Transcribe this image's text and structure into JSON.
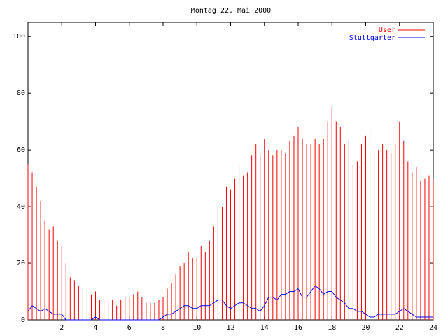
{
  "chart_data": {
    "type": "impulses-line",
    "title": "Montag 22. Mai 2000",
    "x": [
      0,
      0.25,
      0.5,
      0.75,
      1,
      1.25,
      1.5,
      1.75,
      2,
      2.25,
      2.5,
      2.75,
      3,
      3.25,
      3.5,
      3.75,
      4,
      4.25,
      4.5,
      4.75,
      5,
      5.25,
      5.5,
      5.75,
      6,
      6.25,
      6.5,
      6.75,
      7,
      7.25,
      7.5,
      7.75,
      8,
      8.25,
      8.5,
      8.75,
      9,
      9.25,
      9.5,
      9.75,
      10,
      10.25,
      10.5,
      10.75,
      11,
      11.25,
      11.5,
      11.75,
      12,
      12.25,
      12.5,
      12.75,
      13,
      13.25,
      13.5,
      13.75,
      14,
      14.25,
      14.5,
      14.75,
      15,
      15.25,
      15.5,
      15.75,
      16,
      16.25,
      16.5,
      16.75,
      17,
      17.25,
      17.5,
      17.75,
      18,
      18.25,
      18.5,
      18.75,
      19,
      19.25,
      19.5,
      19.75,
      20,
      20.25,
      20.5,
      20.75,
      21,
      21.25,
      21.5,
      21.75,
      22,
      22.25,
      22.5,
      22.75,
      23,
      23.25,
      23.5,
      23.75,
      24
    ],
    "series": [
      {
        "name": "User",
        "color": "#ff0000",
        "style": "impulses",
        "values": [
          55,
          52,
          47,
          42,
          35,
          32,
          33,
          28,
          26,
          20,
          15,
          14,
          12,
          11,
          11,
          9,
          10,
          7,
          7,
          7,
          7,
          5,
          7,
          8,
          8,
          9,
          10,
          8,
          6,
          6,
          6,
          7,
          8,
          11,
          13,
          16,
          19,
          20,
          24,
          22,
          22,
          26,
          24,
          28,
          33,
          40,
          40,
          47,
          46,
          50,
          55,
          51,
          52,
          58,
          62,
          58,
          64,
          60,
          58,
          60,
          60,
          59,
          63,
          65,
          68,
          64,
          62,
          62,
          64,
          62,
          64,
          70,
          75,
          70,
          68,
          62,
          64,
          55,
          56,
          62,
          65,
          67,
          60,
          60,
          62,
          60,
          59,
          62,
          70,
          63,
          56,
          52,
          54,
          49,
          50,
          51,
          50
        ]
      },
      {
        "name": "Stuttgarter",
        "color": "#0000ff",
        "style": "lines",
        "values": [
          3,
          5,
          4,
          3,
          4,
          3,
          2,
          2,
          2,
          0,
          0,
          0,
          0,
          0,
          0,
          0,
          1,
          0,
          0,
          0,
          0,
          0,
          0,
          0,
          0,
          0,
          0,
          0,
          0,
          0,
          0,
          0,
          1,
          2,
          2,
          3,
          4,
          5,
          5,
          4,
          4,
          5,
          5,
          5,
          6,
          7,
          7,
          5,
          4,
          5,
          6,
          6,
          5,
          4,
          4,
          3,
          5,
          8,
          8,
          7,
          9,
          9,
          10,
          10,
          11,
          8,
          8,
          10,
          12,
          11,
          9,
          10,
          10,
          8,
          7,
          6,
          4,
          4,
          3,
          3,
          2,
          1,
          1,
          2,
          2,
          2,
          2,
          2,
          3,
          4,
          3,
          2,
          1,
          1,
          1,
          1,
          1
        ]
      }
    ],
    "xlim": [
      0,
      24
    ],
    "xticks": [
      2,
      4,
      6,
      8,
      10,
      12,
      14,
      16,
      18,
      20,
      22,
      24
    ],
    "ylim": [
      0,
      105
    ],
    "yticks": [
      0,
      20,
      40,
      60,
      80,
      100
    ],
    "legend": "top-right"
  }
}
